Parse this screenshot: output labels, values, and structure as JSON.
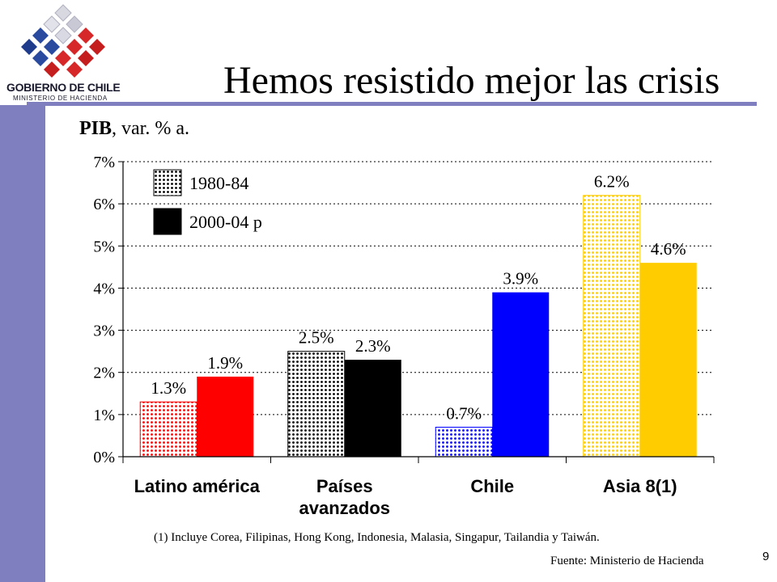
{
  "logo": {
    "line1": "GOBIERNO DE CHILE",
    "line2": "MINISTERIO DE HACIENDA"
  },
  "title": "Hemos resistido mejor las crisis",
  "subtitle": {
    "main": "PIB",
    "rest": ", var. % a."
  },
  "footnote": "(1) Incluye Corea, Filipinas, Hong Kong, Indonesia, Malasia, Singapur, Tailandia y Taiwán.",
  "source": "Fuente: Ministerio de Hacienda",
  "page_number": "9",
  "colors": {
    "sidebar": "#7f7fbf",
    "latam": "#ff0000",
    "avanzados": "#000000",
    "chile": "#0000ff",
    "asia": "#ffcc00"
  },
  "chart_data": {
    "type": "bar",
    "categories": [
      [
        "Latino américa"
      ],
      [
        "Países",
        "avanzados"
      ],
      [
        "Chile"
      ],
      [
        "Asia 8(1)"
      ]
    ],
    "series": [
      {
        "name": "1980-84",
        "values": [
          1.3,
          2.5,
          0.7,
          6.2
        ],
        "labels": [
          "1.3%",
          "2.5%",
          "0.7%",
          "6.2%"
        ],
        "pattern": "dotted"
      },
      {
        "name": "2000-04 p",
        "values": [
          1.9,
          2.3,
          3.9,
          4.6
        ],
        "labels": [
          "1.9%",
          "2.3%",
          "3.9%",
          "4.6%"
        ],
        "pattern": "solid"
      }
    ],
    "category_colors": [
      "#ff0000",
      "#000000",
      "#0000ff",
      "#ffcc00"
    ],
    "yticks": [
      "0%",
      "1%",
      "2%",
      "3%",
      "4%",
      "5%",
      "6%",
      "7%"
    ],
    "ylim": [
      0,
      7
    ],
    "grid": true,
    "legend": "top-left"
  }
}
